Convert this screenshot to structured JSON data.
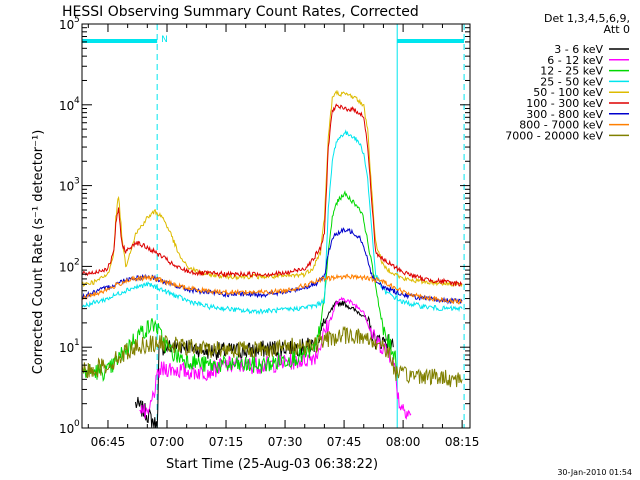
{
  "chart_data": {
    "type": "line",
    "title": "HESSI Observing Summary Count Rates, Corrected",
    "xlabel": "Start Time (25-Aug-03 06:38:22)",
    "ylabel": "Corrected Count Rate (s⁻¹ detector⁻¹)",
    "y_scale": "log",
    "ylim": [
      1,
      100000
    ],
    "xlim_minutes": [
      38.4,
      137
    ],
    "x_ticks": [
      {
        "label": "06:45",
        "minute": 45
      },
      {
        "label": "07:00",
        "minute": 60
      },
      {
        "label": "07:15",
        "minute": 75
      },
      {
        "label": "07:30",
        "minute": 90
      },
      {
        "label": "07:45",
        "minute": 105
      },
      {
        "label": "08:00",
        "minute": 120
      },
      {
        "label": "08:15",
        "minute": 135
      }
    ],
    "y_ticks": [
      {
        "base": "10",
        "exp": "0",
        "value": 1
      },
      {
        "base": "10",
        "exp": "1",
        "value": 10
      },
      {
        "base": "10",
        "exp": "2",
        "value": 100
      },
      {
        "base": "10",
        "exp": "3",
        "value": 1000
      },
      {
        "base": "10",
        "exp": "4",
        "value": 10000
      },
      {
        "base": "10",
        "exp": "5",
        "value": 100000
      }
    ],
    "legend_header": [
      "Det 1,3,4,5,6,9,",
      "Att 0"
    ],
    "legend_position": "right",
    "date_stamp": "30-Jan-2010 01:54",
    "annotations": [
      {
        "text": "N",
        "minute": 57.5
      }
    ],
    "markers": {
      "night_bar_color": "#00e5ee",
      "night_bars": [
        [
          38.4,
          57.5
        ],
        [
          118.5,
          135.5
        ]
      ],
      "dashed_vlines": [
        57.5,
        135.5
      ],
      "solid_vlines": [
        118.5
      ]
    },
    "series": [
      {
        "name": "3 - 6 keV",
        "color": "#000000",
        "x": [
          52,
          55,
          56.5,
          57.5,
          58,
          60,
          65,
          70,
          75,
          80,
          85,
          90,
          95,
          98,
          100,
          102,
          103,
          105,
          107,
          110,
          111,
          112,
          113,
          115,
          116,
          117.5
        ],
        "y": [
          2,
          1.5,
          1.2,
          1,
          10,
          10,
          10.5,
          9,
          9,
          9,
          9.5,
          10,
          10,
          11,
          20,
          30,
          35,
          35,
          30,
          25,
          20,
          15,
          12,
          12,
          12,
          10
        ]
      },
      {
        "name": "6 - 12 keV",
        "color": "#ff00ff",
        "x": [
          53,
          55,
          56,
          58,
          60,
          65,
          70,
          75,
          80,
          85,
          90,
          95,
          98,
          100,
          102,
          103,
          105,
          107,
          110,
          111,
          112,
          113,
          115,
          117,
          118,
          119,
          122
        ],
        "y": [
          2,
          1.3,
          2,
          5,
          5.5,
          5,
          5,
          6,
          6,
          6,
          6.5,
          7,
          8,
          15,
          25,
          35,
          40,
          35,
          28,
          20,
          15,
          12,
          10,
          8,
          5,
          2,
          1.5
        ]
      },
      {
        "name": "12 - 25 keV",
        "color": "#00d800",
        "x": [
          38.4,
          45,
          50,
          53,
          55,
          57,
          58,
          60,
          62,
          65,
          70,
          75,
          80,
          85,
          90,
          95,
          98,
          100,
          101,
          102,
          103,
          105,
          107,
          109,
          110,
          111,
          113,
          115,
          117,
          118,
          118.5
        ],
        "y": [
          5,
          5,
          10,
          15,
          17,
          20,
          15,
          10,
          8,
          7,
          6,
          6,
          6,
          6,
          7,
          8,
          10,
          40,
          150,
          400,
          600,
          800,
          650,
          520,
          380,
          200,
          60,
          15,
          10,
          8,
          5
        ]
      },
      {
        "name": "25 - 50 keV",
        "color": "#00e5ee",
        "x": [
          38.4,
          45,
          50,
          55,
          57.5,
          60,
          65,
          70,
          75,
          80,
          85,
          90,
          95,
          98,
          100,
          101,
          102,
          103,
          105,
          107,
          109,
          110,
          111,
          112,
          113,
          115,
          120,
          125,
          130,
          135
        ],
        "y": [
          32,
          40,
          52,
          60,
          55,
          48,
          38,
          32,
          30,
          28,
          28,
          29,
          31,
          33,
          38,
          500,
          2000,
          3500,
          4500,
          4200,
          3300,
          2500,
          1200,
          300,
          80,
          50,
          36,
          32,
          30,
          30
        ]
      },
      {
        "name": "50 - 100 keV",
        "color": "#ddbb00",
        "x": [
          38.4,
          42,
          45,
          46.5,
          47,
          47.7,
          48.5,
          49.5,
          52,
          55,
          57,
          59,
          61,
          63,
          65,
          68,
          70,
          75,
          80,
          85,
          90,
          95,
          97,
          99,
          100,
          101,
          102,
          103,
          105,
          107,
          109,
          110,
          111,
          112,
          113,
          115,
          120,
          125,
          130,
          135
        ],
        "y": [
          60,
          65,
          80,
          150,
          400,
          750,
          250,
          100,
          250,
          400,
          480,
          400,
          250,
          140,
          100,
          85,
          80,
          75,
          75,
          75,
          75,
          80,
          95,
          150,
          400,
          4000,
          12000,
          14000,
          13500,
          13000,
          11000,
          9500,
          5000,
          900,
          200,
          100,
          70,
          65,
          62,
          60
        ]
      },
      {
        "name": "100 - 300 keV",
        "color": "#dd0000",
        "x": [
          38.4,
          42,
          45,
          46.5,
          47,
          47.7,
          48.5,
          49.5,
          52,
          55,
          57,
          60,
          62,
          65,
          68,
          70,
          75,
          80,
          85,
          90,
          95,
          97,
          99,
          100,
          101,
          102,
          103,
          105,
          107,
          109,
          110,
          111,
          112,
          113,
          115,
          120,
          125,
          130,
          135
        ],
        "y": [
          80,
          85,
          95,
          150,
          350,
          500,
          200,
          150,
          200,
          170,
          150,
          120,
          100,
          88,
          82,
          82,
          80,
          80,
          80,
          82,
          95,
          120,
          170,
          250,
          3000,
          8500,
          9500,
          9000,
          8800,
          8000,
          7000,
          3000,
          700,
          150,
          120,
          85,
          70,
          65,
          60
        ]
      },
      {
        "name": "300 - 800 keV",
        "color": "#0000cc",
        "x": [
          38.4,
          45,
          50,
          55,
          57.5,
          60,
          65,
          70,
          75,
          80,
          85,
          90,
          95,
          98,
          100,
          101,
          102,
          103,
          105,
          107,
          109,
          110,
          111,
          112,
          113,
          115,
          120,
          125,
          130,
          135
        ],
        "y": [
          42,
          55,
          70,
          75,
          70,
          62,
          52,
          48,
          45,
          45,
          45,
          48,
          55,
          62,
          75,
          150,
          220,
          250,
          280,
          270,
          230,
          180,
          120,
          80,
          65,
          55,
          45,
          40,
          38,
          37
        ]
      },
      {
        "name": "800 - 7000 keV",
        "color": "#ff7f00",
        "x": [
          38.4,
          45,
          50,
          55,
          57.5,
          60,
          65,
          70,
          75,
          80,
          85,
          90,
          95,
          98,
          100,
          102,
          105,
          108,
          110,
          112,
          115,
          118,
          120,
          125,
          130,
          135
        ],
        "y": [
          40,
          52,
          68,
          72,
          70,
          63,
          54,
          50,
          48,
          48,
          48,
          50,
          58,
          65,
          70,
          72,
          75,
          75,
          72,
          70,
          65,
          55,
          48,
          42,
          38,
          36
        ]
      },
      {
        "name": "7000 - 20000 keV",
        "color": "#808000",
        "x": [
          38.4,
          42,
          45,
          50,
          52,
          55,
          57,
          60,
          62,
          65,
          70,
          75,
          80,
          85,
          90,
          95,
          98,
          100,
          102,
          105,
          108,
          110,
          112,
          114,
          115,
          116,
          117,
          118,
          119,
          120,
          125,
          130,
          135
        ],
        "y": [
          5,
          5.5,
          6,
          9,
          10,
          11,
          11,
          11,
          10.5,
          10,
          9.5,
          9.5,
          9.5,
          9.5,
          10,
          10.5,
          11,
          12,
          13,
          14,
          14,
          13,
          12,
          11,
          10.5,
          9,
          7,
          5,
          4.5,
          4.5,
          4.5,
          4.2,
          4
        ]
      }
    ]
  }
}
